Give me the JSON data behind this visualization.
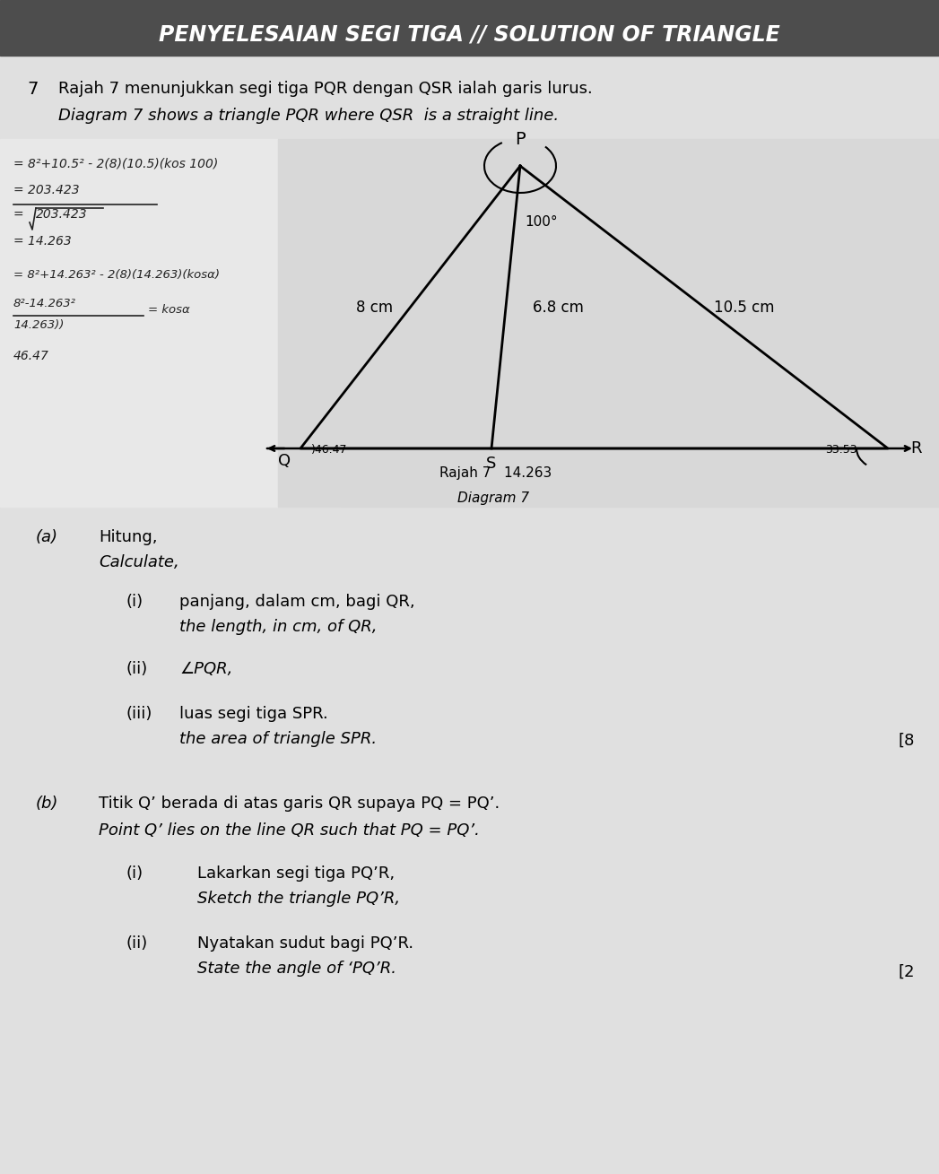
{
  "title_text": "PENYELESAIAN SEGI TIGA // SOLUTION OF TRIANGLE",
  "title_bg_color": "#555555",
  "title_text_color": "#ffffff",
  "page_bg_color": "#cccccc",
  "question_number": "7",
  "question_malay": "Rajah 7 menunjukkan segi tiga PQR dengan QSR ialah garis lurus.",
  "question_english": "Diagram 7 shows a triangle PQR where QSR  is a straight line.",
  "diagram_caption_malay": "Rajah 7   14.263",
  "diagram_caption_english": "Diagram 7",
  "part_a_label": "(a)",
  "part_a_malay": "Hitung,",
  "part_a_english": "Calculate,",
  "sub_i_malay": "panjang, dalam cm, bagi QR,",
  "sub_i_english": "the length, in cm, of QR,",
  "sub_ii": "∠PQR,",
  "sub_iii_malay": "luas segi tiga SPR.",
  "sub_iii_english": "the area of triangle SPR.",
  "marks_a": "[8",
  "part_b_label": "(b)",
  "part_b_malay": "Titik Q’ berada di atas garis QR supaya PQ = PQ’.",
  "part_b_english": "Point Q’ lies on the line QR such that PQ = PQ’.",
  "sub_b_i_malay": "Lakarkan segi tiga PQ’R,",
  "sub_b_i_english": "Sketch the triangle PQ’R,",
  "sub_b_ii_malay": "Nyatakan sudut bagi PQ’R.",
  "sub_b_ii_english": "State the angle of ‘PQ’R.",
  "marks_b": "[2"
}
